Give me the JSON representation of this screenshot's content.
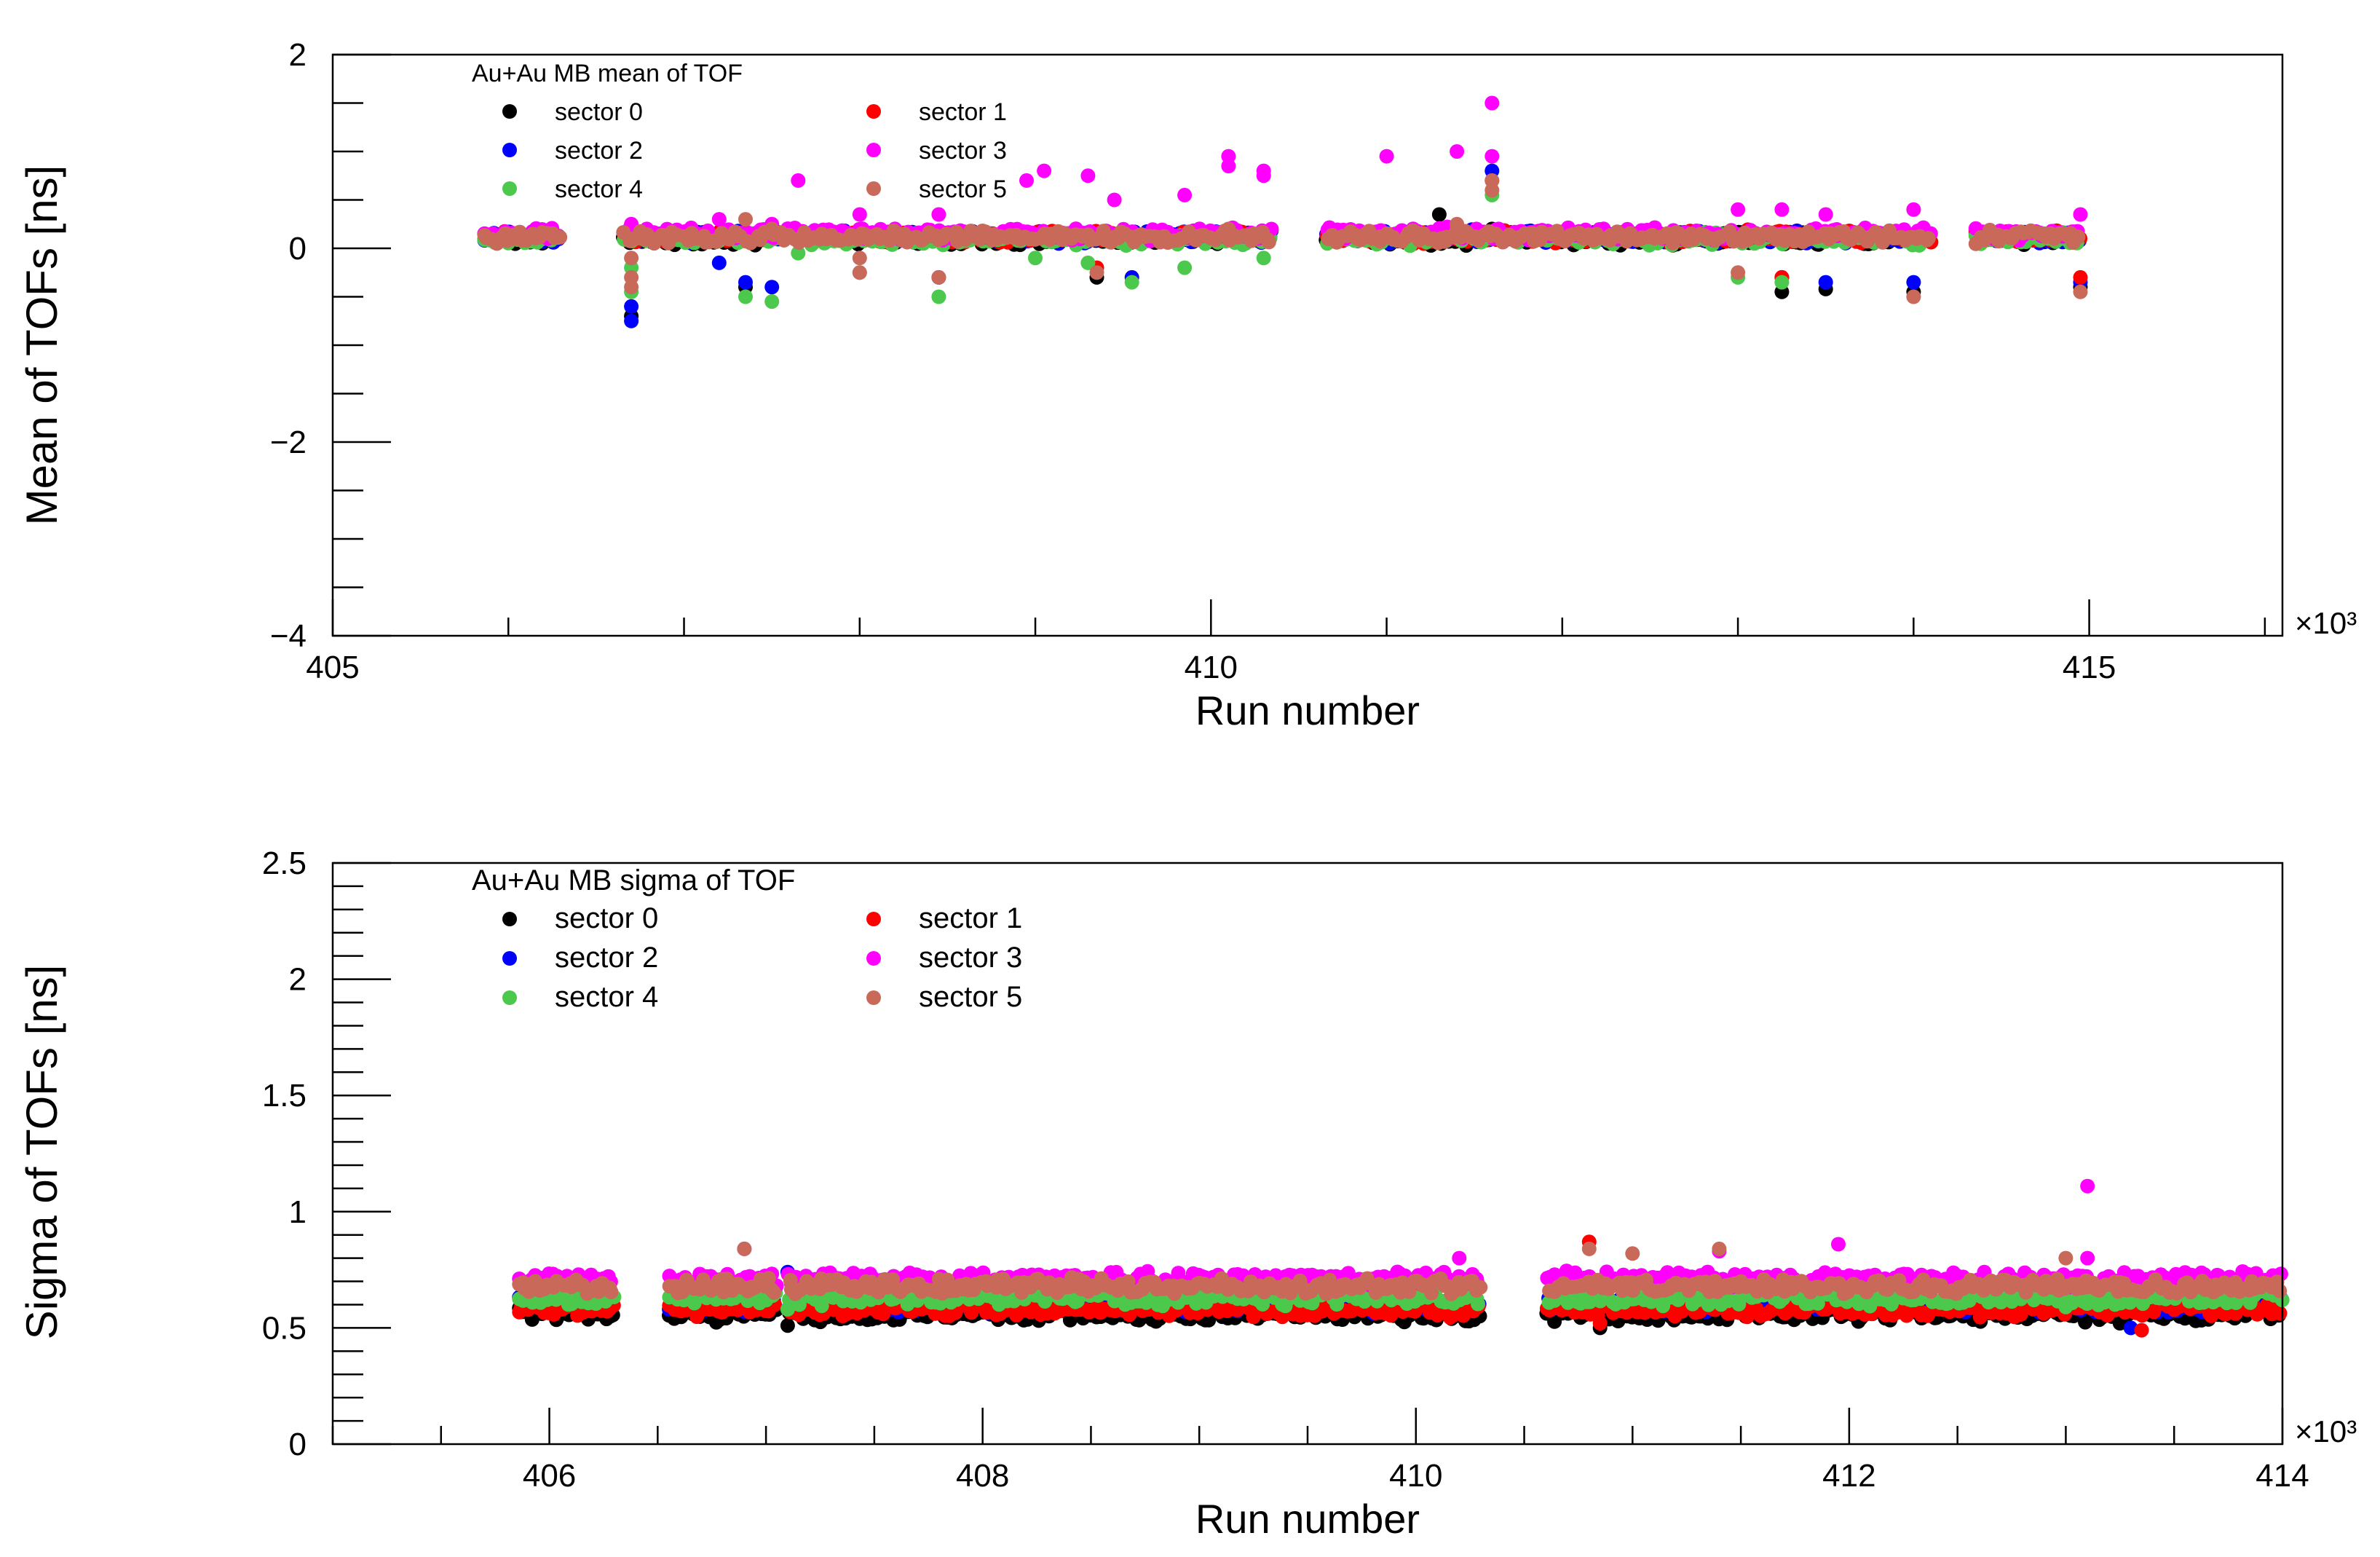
{
  "colors": {
    "sector_0": "#000000",
    "sector_1": "#ff0000",
    "sector_2": "#0000ff",
    "sector_3": "#ff00ff",
    "sector_4": "#4cc84c",
    "sector_5": "#c8695a"
  },
  "chart_data": [
    {
      "type": "scatter",
      "title": "Au+Au MB mean of TOF",
      "xlabel": "Run number",
      "ylabel": "Mean of TOFs [ns]",
      "x_multiplier": "×10³",
      "xlim": [
        405,
        416.1
      ],
      "ylim": [
        -4,
        2
      ],
      "x_major_ticks": [
        405,
        410,
        415
      ],
      "x_tick_labels": [
        "405",
        "410",
        "415"
      ],
      "x_minor_step": 1,
      "y_major_ticks": [
        -4,
        -2,
        0,
        2
      ],
      "y_tick_labels": [
        "−4",
        "−2",
        "0",
        "2"
      ],
      "y_minor_step": 0.5,
      "grid": false,
      "legend_position": "top-left",
      "segments": [
        [
          405.85,
          406.3
        ],
        [
          406.65,
          410.35
        ],
        [
          410.65,
          414.1
        ],
        [
          414.35,
          414.95
        ]
      ],
      "baseline": {
        "sector_0": 0.1,
        "sector_1": 0.12,
        "sector_2": 0.12,
        "sector_3": 0.15,
        "sector_4": 0.1,
        "sector_5": 0.12
      },
      "series": [
        {
          "name": "sector 0",
          "key": "sector_0",
          "outliers": [
            [
              406.7,
              -0.7
            ],
            [
              407.35,
              -0.4
            ],
            [
              409.35,
              -0.3
            ],
            [
              411.3,
              0.35
            ],
            [
              411.6,
              0.2
            ],
            [
              413.25,
              -0.45
            ],
            [
              413.5,
              -0.42
            ],
            [
              414.0,
              -0.45
            ],
            [
              414.95,
              -0.4
            ]
          ]
        },
        {
          "name": "sector 1",
          "key": "sector_1",
          "outliers": [
            [
              409.35,
              -0.2
            ],
            [
              411.6,
              0.7
            ],
            [
              413.25,
              -0.3
            ],
            [
              414.95,
              -0.3
            ]
          ]
        },
        {
          "name": "sector 2",
          "key": "sector_2",
          "outliers": [
            [
              406.7,
              -0.75
            ],
            [
              406.7,
              -0.6
            ],
            [
              407.2,
              -0.15
            ],
            [
              407.35,
              -0.35
            ],
            [
              407.5,
              -0.4
            ],
            [
              408.45,
              -0.3
            ],
            [
              409.55,
              -0.3
            ],
            [
              411.6,
              0.8
            ],
            [
              413.25,
              -0.3
            ],
            [
              413.5,
              -0.35
            ],
            [
              414.0,
              -0.35
            ],
            [
              414.95,
              -0.35
            ]
          ]
        },
        {
          "name": "sector 3",
          "key": "sector_3",
          "outliers": [
            [
              406.7,
              0.25
            ],
            [
              407.2,
              0.3
            ],
            [
              407.5,
              0.25
            ],
            [
              407.65,
              0.7
            ],
            [
              408.0,
              0.35
            ],
            [
              408.45,
              0.35
            ],
            [
              408.95,
              0.7
            ],
            [
              409.05,
              0.8
            ],
            [
              409.3,
              0.75
            ],
            [
              409.45,
              0.5
            ],
            [
              409.85,
              0.55
            ],
            [
              410.1,
              0.95
            ],
            [
              410.1,
              0.85
            ],
            [
              410.3,
              0.75
            ],
            [
              410.3,
              0.8
            ],
            [
              411.0,
              0.95
            ],
            [
              411.4,
              1.0
            ],
            [
              411.6,
              1.5
            ],
            [
              411.6,
              0.95
            ],
            [
              413.0,
              0.4
            ],
            [
              413.25,
              0.4
            ],
            [
              413.5,
              0.35
            ],
            [
              414.0,
              0.4
            ],
            [
              414.95,
              0.35
            ]
          ]
        },
        {
          "name": "sector 4",
          "key": "sector_4",
          "outliers": [
            [
              406.7,
              -0.2
            ],
            [
              406.7,
              -0.45
            ],
            [
              407.35,
              -0.5
            ],
            [
              407.5,
              -0.55
            ],
            [
              407.65,
              -0.05
            ],
            [
              408.0,
              -0.25
            ],
            [
              408.45,
              -0.5
            ],
            [
              409.0,
              -0.1
            ],
            [
              409.3,
              -0.15
            ],
            [
              409.55,
              -0.35
            ],
            [
              409.85,
              -0.2
            ],
            [
              410.3,
              -0.1
            ],
            [
              411.6,
              0.55
            ],
            [
              413.0,
              -0.3
            ],
            [
              413.25,
              -0.35
            ]
          ]
        },
        {
          "name": "sector 5",
          "key": "sector_5",
          "outliers": [
            [
              406.7,
              -0.1
            ],
            [
              406.7,
              -0.3
            ],
            [
              406.7,
              -0.4
            ],
            [
              407.35,
              0.3
            ],
            [
              407.5,
              0.2
            ],
            [
              408.0,
              -0.1
            ],
            [
              408.0,
              -0.25
            ],
            [
              408.45,
              -0.3
            ],
            [
              409.35,
              -0.25
            ],
            [
              410.1,
              0.2
            ],
            [
              411.4,
              0.25
            ],
            [
              411.6,
              0.6
            ],
            [
              411.6,
              0.7
            ],
            [
              413.0,
              -0.25
            ],
            [
              414.0,
              -0.5
            ],
            [
              414.95,
              -0.45
            ]
          ]
        }
      ]
    },
    {
      "type": "scatter",
      "title": "Au+Au MB sigma of TOF",
      "xlabel": "Run number",
      "ylabel": "Sigma of TOFs [ns]",
      "x_multiplier": "×10³",
      "xlim": [
        405,
        414
      ],
      "ylim": [
        0,
        2.5
      ],
      "x_major_ticks": [
        406,
        408,
        410,
        412,
        414
      ],
      "x_tick_labels": [
        "406",
        "408",
        "410",
        "412",
        "414"
      ],
      "x_minor_step": 0.5,
      "y_major_ticks": [
        0,
        0.5,
        1,
        1.5,
        2,
        2.5
      ],
      "y_tick_labels": [
        "0",
        "0.5",
        "1",
        "1.5",
        "2",
        "2.5"
      ],
      "y_minor_step": 0.1,
      "grid": false,
      "legend_position": "top-left",
      "segments": [
        [
          405.85,
          406.3
        ],
        [
          406.55,
          407.05
        ],
        [
          407.1,
          410.3
        ],
        [
          410.6,
          414.0
        ]
      ],
      "baseline": {
        "sector_0": 0.56,
        "sector_1": 0.58,
        "sector_2": 0.6,
        "sector_3": 0.71,
        "sector_4": 0.63,
        "sector_5": 0.68
      },
      "series": [
        {
          "name": "sector 0",
          "key": "sector_0",
          "outliers": [
            [
              407.1,
              0.51
            ],
            [
              410.85,
              0.5
            ],
            [
              411.75,
              0.55
            ],
            [
              413.25,
              0.52
            ],
            [
              413.6,
              0.53
            ]
          ]
        },
        {
          "name": "sector 1",
          "key": "sector_1",
          "outliers": [
            [
              410.8,
              0.87
            ],
            [
              410.85,
              0.52
            ],
            [
              413.35,
              0.49
            ],
            [
              411.75,
              0.62
            ]
          ]
        },
        {
          "name": "sector 2",
          "key": "sector_2",
          "outliers": [
            [
              407.1,
              0.74
            ],
            [
              411.85,
              0.61
            ],
            [
              413.3,
              0.5
            ]
          ]
        },
        {
          "name": "sector 3",
          "key": "sector_3",
          "outliers": [
            [
              406.9,
              0.84
            ],
            [
              411.4,
              0.83
            ],
            [
              411.95,
              0.86
            ],
            [
              413.1,
              1.11
            ],
            [
              413.1,
              0.8
            ],
            [
              410.2,
              0.8
            ]
          ]
        },
        {
          "name": "sector 4",
          "key": "sector_4",
          "outliers": [
            [
              407.1,
              0.58
            ],
            [
              413.0,
              0.59
            ]
          ]
        },
        {
          "name": "sector 5",
          "key": "sector_5",
          "outliers": [
            [
              406.9,
              0.84
            ],
            [
              410.8,
              0.84
            ],
            [
              411.4,
              0.84
            ],
            [
              411.0,
              0.82
            ],
            [
              413.0,
              0.8
            ]
          ]
        }
      ]
    }
  ]
}
